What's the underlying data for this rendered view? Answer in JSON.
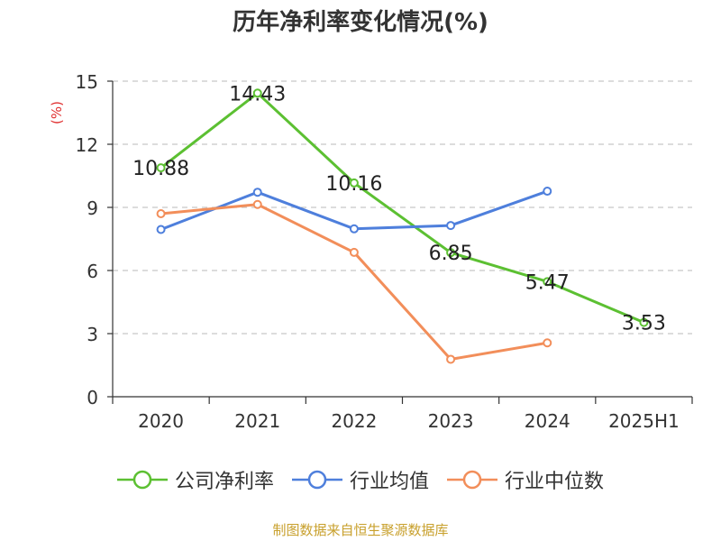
{
  "title": "历年净利率变化情况(%)",
  "source": "制图数据来自恒生聚源数据库",
  "colors": {
    "company": "#5cc032",
    "industry_avg": "#4e7fdc",
    "industry_median": "#f28e5a",
    "grid": "#c8c8c8",
    "axis": "#333333",
    "ylabel": "#e03030",
    "source": "#c8a02c"
  },
  "chart_data": {
    "type": "line",
    "title": "历年净利率变化情况(%)",
    "ylabel": "(%)",
    "xlabel": "",
    "categories": [
      "2020",
      "2021",
      "2022",
      "2023",
      "2024",
      "2025H1"
    ],
    "ylim": [
      0,
      15
    ],
    "yticks": [
      "0",
      "3",
      "6",
      "9",
      "12",
      "15"
    ],
    "grid": true,
    "legend_position": "bottom",
    "series": [
      {
        "name": "公司净利率",
        "color": "#5cc032",
        "values": [
          10.88,
          14.43,
          10.16,
          6.85,
          5.47,
          3.53
        ],
        "labels": [
          "10.88",
          "14.43",
          "10.16",
          "6.85",
          "5.47",
          "3.53"
        ]
      },
      {
        "name": "行业均值",
        "color": "#4e7fdc",
        "values": [
          7.95,
          9.72,
          7.98,
          8.14,
          9.77,
          null
        ]
      },
      {
        "name": "行业中位数",
        "color": "#f28e5a",
        "values": [
          8.7,
          9.14,
          6.86,
          1.78,
          2.56,
          null
        ]
      }
    ]
  }
}
